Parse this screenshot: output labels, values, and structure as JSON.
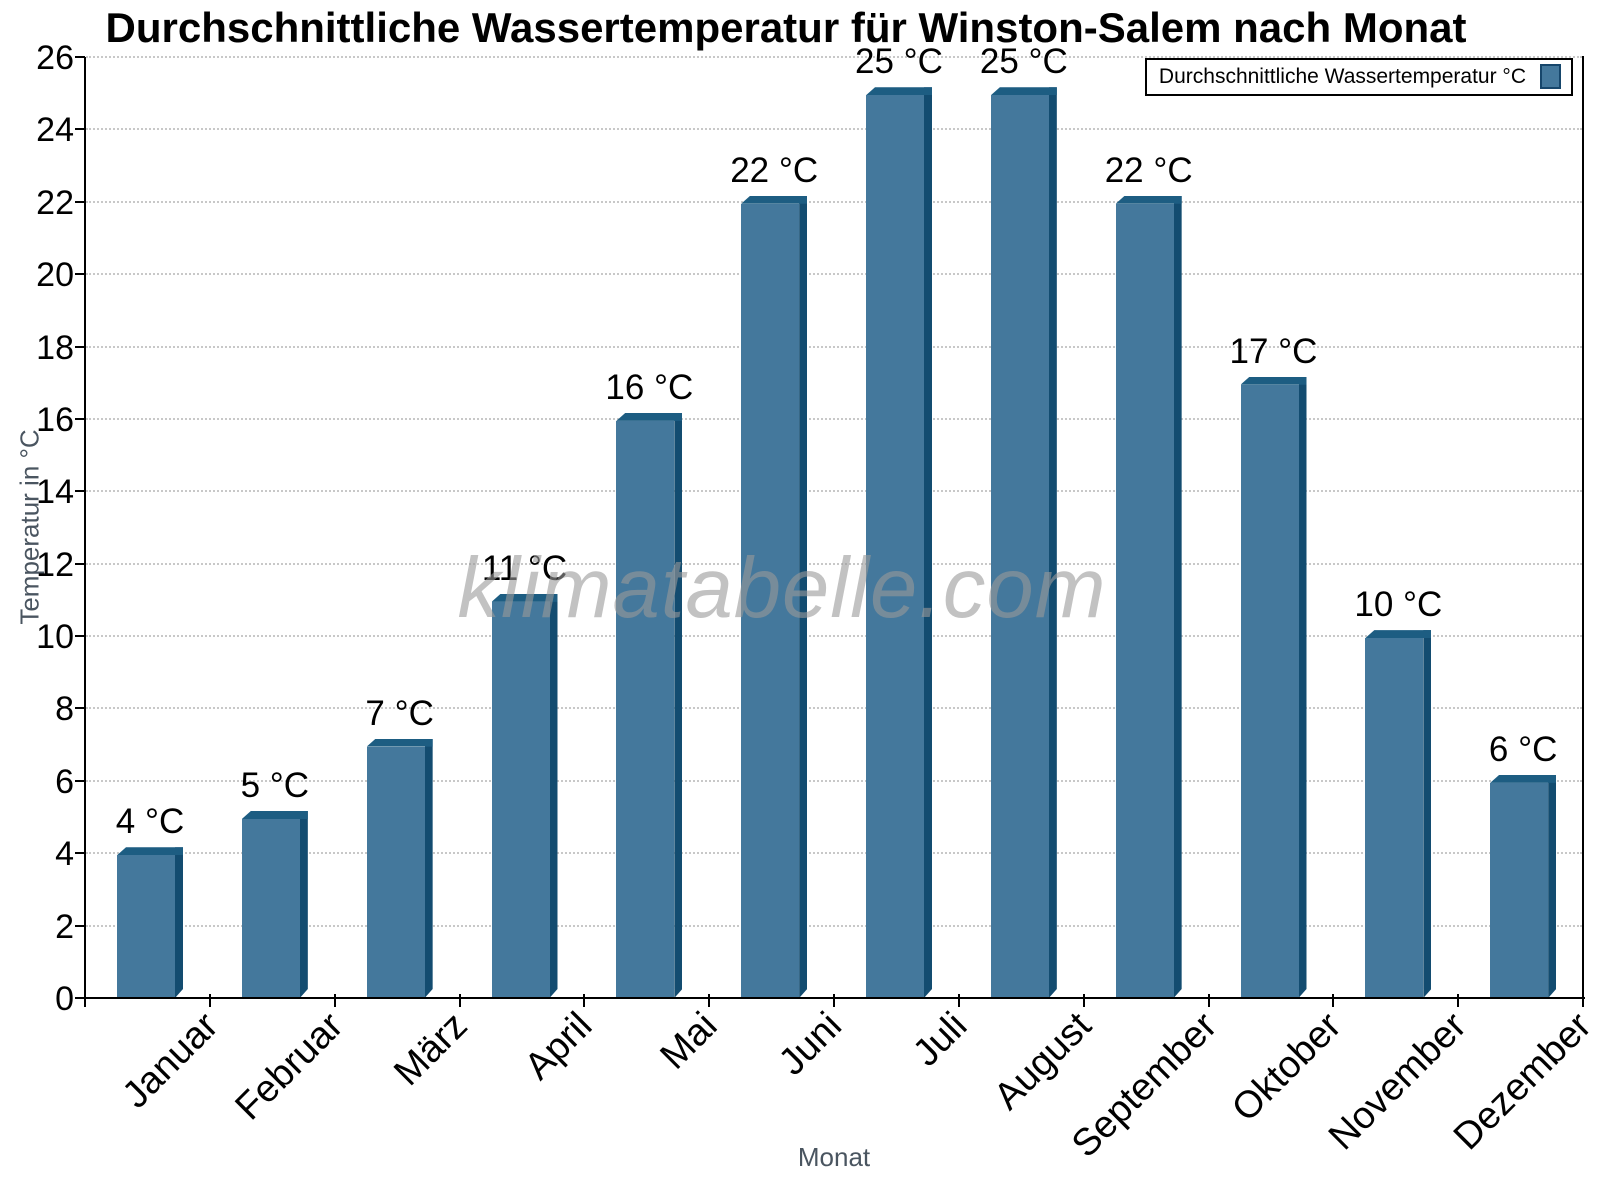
{
  "watermark": "klimatabelle.com",
  "chart_data": {
    "type": "bar",
    "title": "Durchschnittliche Wassertemperatur für Winston-Salem nach Monat",
    "xlabel": "Monat",
    "ylabel": "Temperatur in °C",
    "legend_label": "Durchschnittliche Wassertemperatur °C",
    "legend_position": "top-right",
    "categories": [
      "Januar",
      "Februar",
      "März",
      "April",
      "Mai",
      "Juni",
      "Juli",
      "August",
      "September",
      "Oktober",
      "November",
      "Dezember"
    ],
    "values": [
      4,
      5,
      7,
      11,
      16,
      22,
      25,
      25,
      22,
      17,
      10,
      6
    ],
    "bar_labels": [
      "4 °C",
      "5 °C",
      "7 °C",
      "11 °C",
      "16 °C",
      "22 °C",
      "25 °C",
      "25 °C",
      "22 °C",
      "17 °C",
      "10 °C",
      "6 °C"
    ],
    "ylim": [
      0,
      26
    ],
    "yticks": [
      0,
      2,
      4,
      6,
      8,
      10,
      12,
      14,
      16,
      18,
      20,
      22,
      24,
      26
    ],
    "grid": "horizontal-dotted",
    "colors": {
      "bar_face": "#44789C",
      "bar_side": "#134C70",
      "bar_top": "#1D5D82",
      "grid": "#C8C8C8",
      "axis_title": "#4A5560",
      "watermark": "#9A9A9A"
    }
  }
}
